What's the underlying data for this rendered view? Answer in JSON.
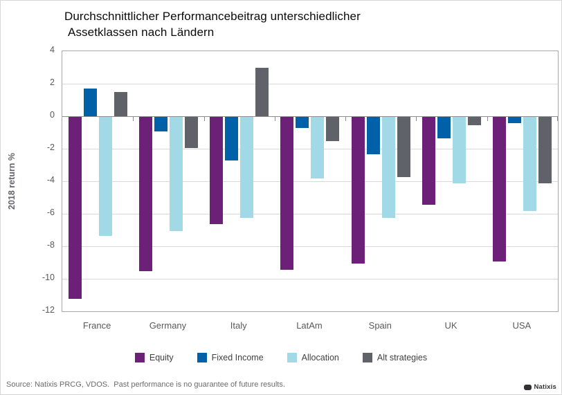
{
  "title": {
    "line1": "Durchschnittlicher Performancebeitrag unterschiedlicher",
    "line2": "Assetklassen nach Ländern"
  },
  "chart_data": {
    "type": "bar",
    "title": "Durchschnittlicher Performancebeitrag unterschiedlicher Assetklassen nach Ländern",
    "xlabel": "",
    "ylabel": "2018 return %",
    "ylim": [
      -12,
      4
    ],
    "ytick_step": 2,
    "yticks": [
      4,
      2,
      0,
      -2,
      -4,
      -6,
      -8,
      -10,
      -12
    ],
    "grid": true,
    "legend_position": "bottom",
    "categories": [
      "France",
      "Germany",
      "Italy",
      "LatAm",
      "Spain",
      "UK",
      "USA"
    ],
    "series": [
      {
        "name": "Equity",
        "color": "#6d2077",
        "values": [
          -11.2,
          -9.5,
          -6.6,
          -9.4,
          -9.0,
          -5.4,
          -8.9
        ]
      },
      {
        "name": "Fixed Income",
        "color": "#0061a8",
        "values": [
          1.7,
          -0.9,
          -2.7,
          -0.7,
          -2.3,
          -1.3,
          -0.4
        ]
      },
      {
        "name": "Allocation",
        "color": "#a2d9e7",
        "values": [
          -7.3,
          -7.0,
          -6.2,
          -3.8,
          -6.2,
          -4.1,
          -5.8
        ]
      },
      {
        "name": "Alt strategies",
        "color": "#5f6369",
        "values": [
          1.5,
          -1.9,
          3.0,
          -1.5,
          -3.7,
          -0.5,
          -4.1
        ]
      }
    ]
  },
  "footer": {
    "source": "Source: Natixis PRCG, VDOS.  Past performance is no guarantee of future results.",
    "logo_text": "Natixis"
  }
}
